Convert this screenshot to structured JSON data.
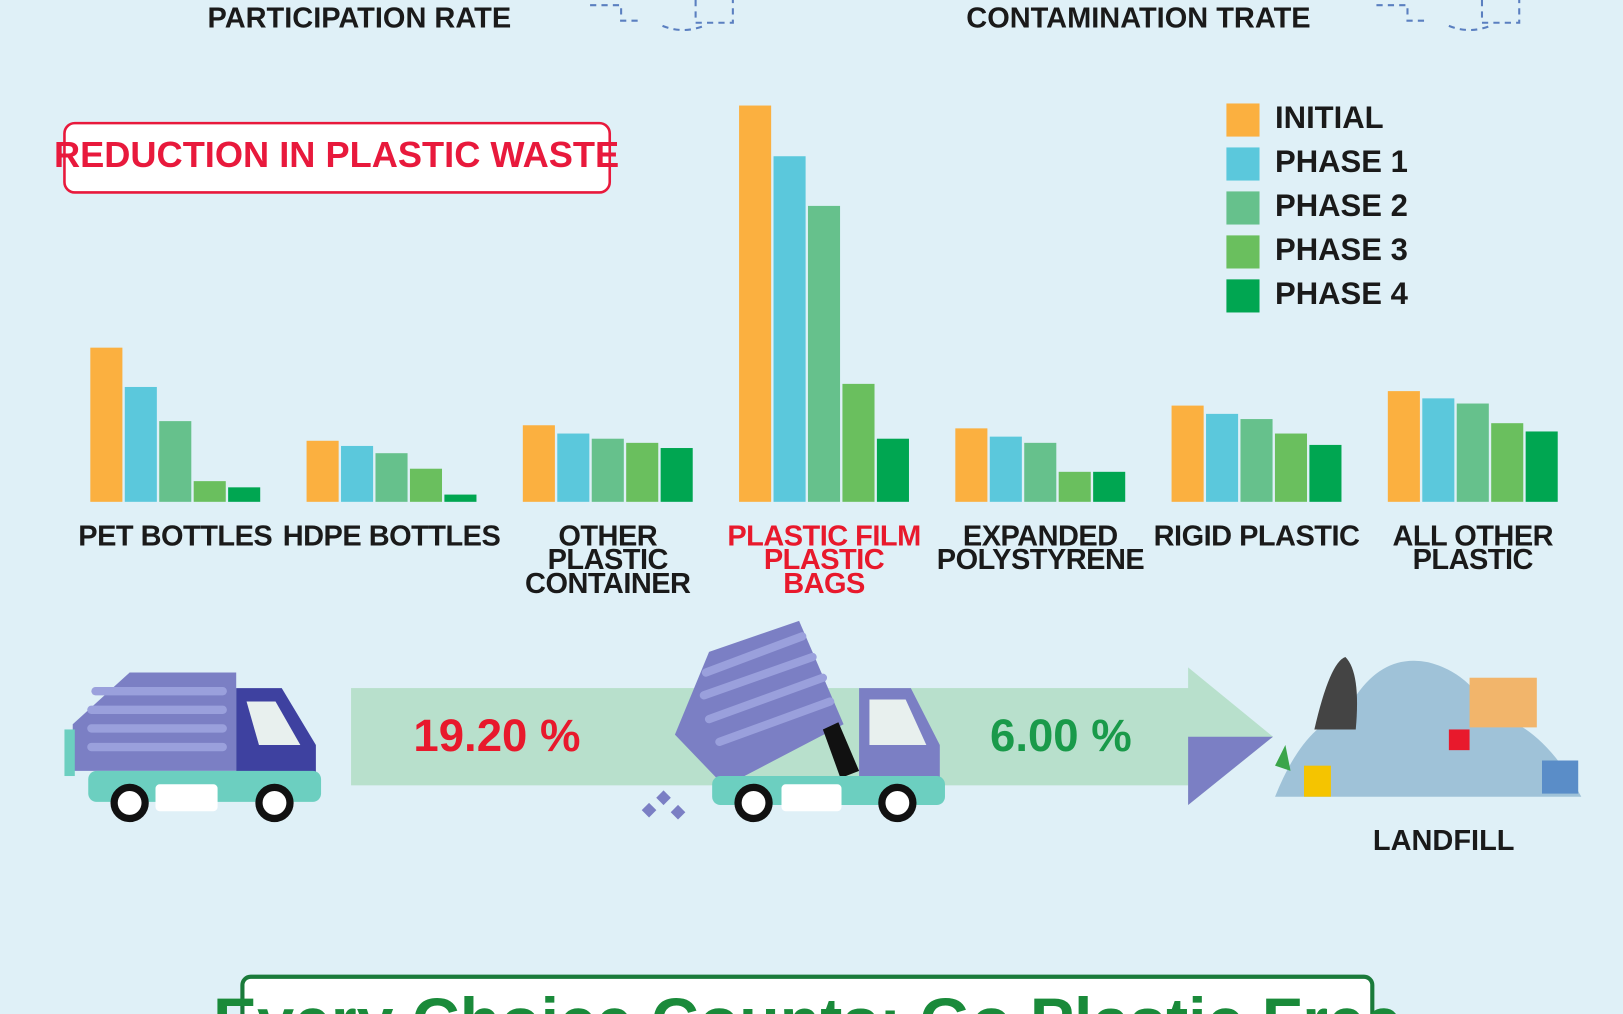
{
  "header": {
    "left_caption": "PARTICIPATION RATE",
    "right_caption": "CONTAMINATION TRATE"
  },
  "chart_data": {
    "type": "bar",
    "title": "REDUCTION IN PLASTIC WASTE",
    "categories": [
      "PET BOTTLES",
      "HDPE BOTTLES",
      "OTHER PLASTIC CONTAINER",
      "PLASTIC FILM PLASTIC BAGS",
      "EXPANDED POLYSTYRENE",
      "RIGID PLASTIC",
      "ALL OTHER PLASTIC"
    ],
    "category_colors": [
      "#1a1a1a",
      "#1a1a1a",
      "#1a1a1a",
      "#e8192c",
      "#1a1a1a",
      "#1a1a1a",
      "#1a1a1a"
    ],
    "series": [
      {
        "name": "INITIAL",
        "color": "#fbb040",
        "values": [
          149,
          59,
          74,
          383,
          71,
          93,
          107
        ]
      },
      {
        "name": "PHASE 1",
        "color": "#5bc8dc",
        "values": [
          111,
          54,
          66,
          334,
          63,
          85,
          100
        ]
      },
      {
        "name": "PHASE 2",
        "color": "#66c18c",
        "values": [
          78,
          47,
          61,
          286,
          57,
          80,
          95
        ]
      },
      {
        "name": "PHASE 3",
        "color": "#6abf5e",
        "values": [
          20,
          32,
          57,
          114,
          29,
          66,
          76
        ]
      },
      {
        "name": "PHASE 4",
        "color": "#00a651",
        "values": [
          14,
          7,
          52,
          61,
          29,
          55,
          68
        ]
      }
    ],
    "legend": "top-right"
  },
  "flow": {
    "rates": [
      "19.20 %",
      "6.00 %"
    ],
    "rate_colors": [
      "#e8192c",
      "#1a9a4a"
    ],
    "destination": "LANDFILL"
  },
  "footer": {
    "slogan": "Every Choice Counts: Go Plastic Free"
  }
}
